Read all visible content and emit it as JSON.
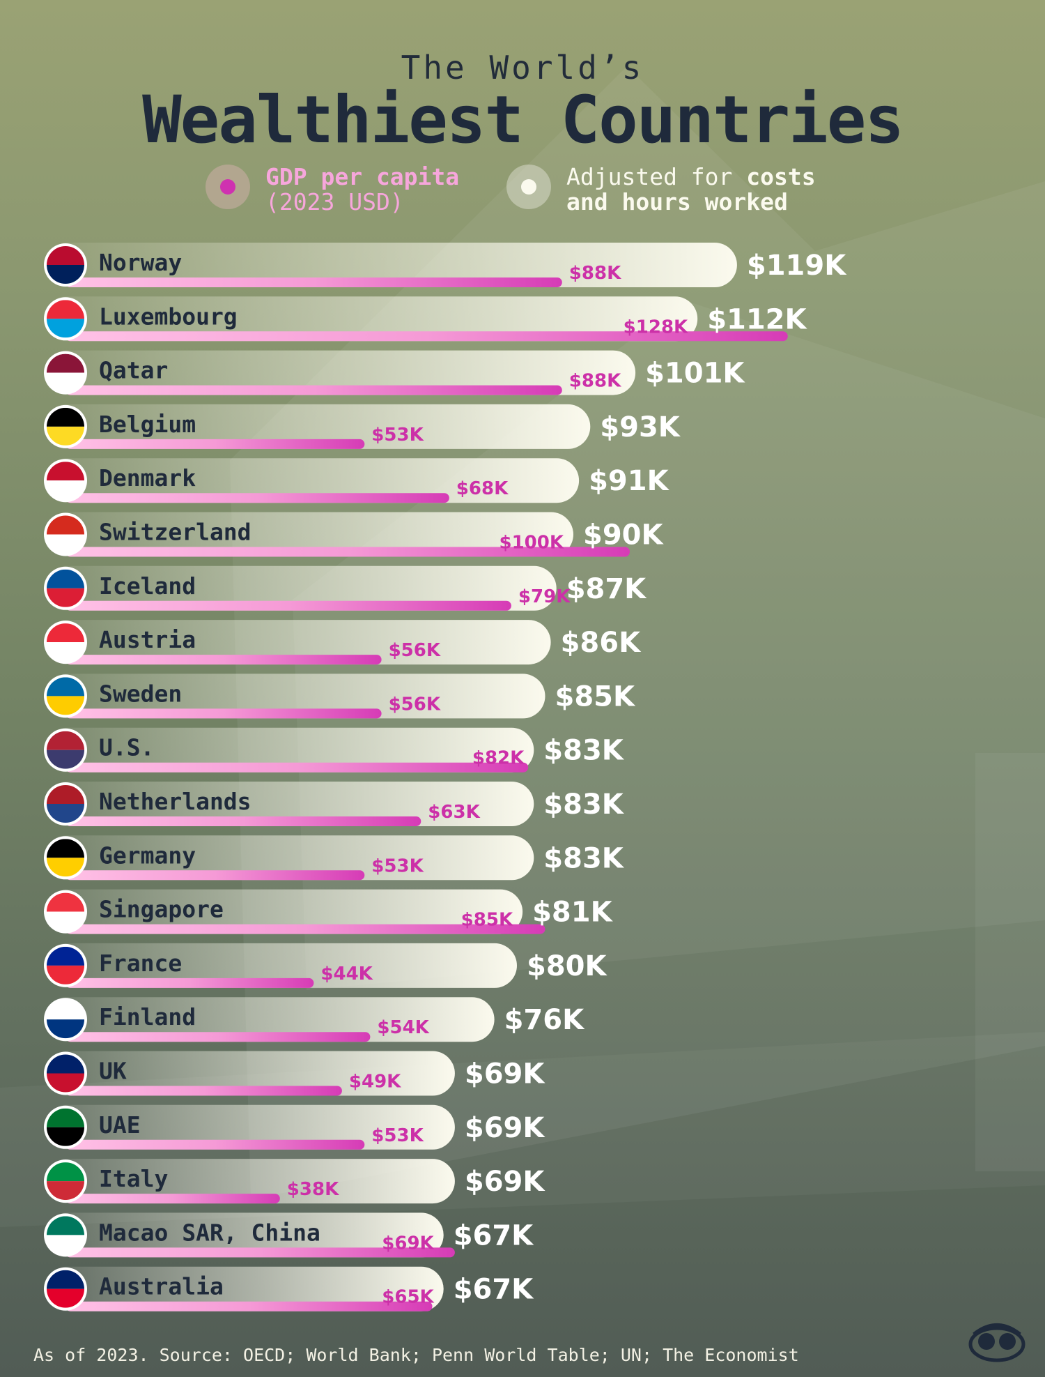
{
  "header": {
    "subtitle": "The World’s",
    "title": "Wealthiest Countries"
  },
  "legend": {
    "gdp_line1": "GDP per capita",
    "gdp_line2": "(2023 USD)",
    "adjusted_prefix": "Adjusted for ",
    "adjusted_bold1": "costs",
    "adjusted_line2": "and hours worked"
  },
  "footer": {
    "source": "As of 2023. Source: OECD; World Bank; Penn World Table; UN; The Economist"
  },
  "colors": {
    "adjusted_bar": "#fbfaee",
    "gdp_bar": "#d63bb6",
    "gdp_label": "#cc30a8",
    "title": "#1f2a3b"
  },
  "chart_data": {
    "type": "bar",
    "orientation": "horizontal",
    "categories": [
      "Norway",
      "Luxembourg",
      "Qatar",
      "Belgium",
      "Denmark",
      "Switzerland",
      "Iceland",
      "Austria",
      "Sweden",
      "U.S.",
      "Netherlands",
      "Germany",
      "Singapore",
      "France",
      "Finland",
      "UK",
      "UAE",
      "Italy",
      "Macao SAR, China",
      "Australia"
    ],
    "series": [
      {
        "name": "Adjusted for costs and hours worked",
        "values": [
          119,
          112,
          101,
          93,
          91,
          90,
          87,
          86,
          85,
          83,
          83,
          83,
          81,
          80,
          76,
          69,
          69,
          69,
          67,
          67
        ],
        "labels": [
          "$119K",
          "$112K",
          "$101K",
          "$93K",
          "$91K",
          "$90K",
          "$87K",
          "$86K",
          "$85K",
          "$83K",
          "$83K",
          "$83K",
          "$81K",
          "$80K",
          "$76K",
          "$69K",
          "$69K",
          "$69K",
          "$67K",
          "$67K"
        ]
      },
      {
        "name": "GDP per capita (2023 USD)",
        "values": [
          88,
          128,
          88,
          53,
          68,
          100,
          79,
          56,
          56,
          82,
          63,
          53,
          85,
          44,
          54,
          49,
          53,
          38,
          69,
          65
        ],
        "labels": [
          "$88K",
          "$128K",
          "$88K",
          "$53K",
          "$68K",
          "$100K",
          "$79K",
          "$56K",
          "$56K",
          "$82K",
          "$63K",
          "$53K",
          "$85K",
          "$44K",
          "$54K",
          "$49K",
          "$53K",
          "$38K",
          "$69K",
          "$65K"
        ]
      }
    ],
    "units": "thousand USD",
    "sort": "descending by adjusted value"
  }
}
